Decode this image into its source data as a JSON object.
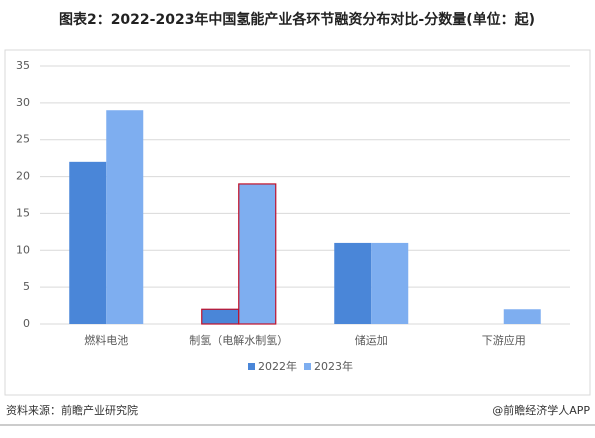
{
  "chart_data": {
    "type": "bar",
    "title": "图表2：2022-2023年中国氢能产业各环节融资分布对比-分数量(单位：起)",
    "categories": [
      "燃料电池",
      "制氢（电解水制氢）",
      "储运加",
      "下游应用"
    ],
    "series": [
      {
        "name": "2022年",
        "color": "#4a86d8",
        "values": [
          22,
          2,
          11,
          0
        ]
      },
      {
        "name": "2023年",
        "color": "#7eaef0",
        "values": [
          29,
          19,
          11,
          2
        ]
      }
    ],
    "ylim": [
      0,
      35
    ],
    "yticks": [
      0,
      5,
      10,
      15,
      20,
      25,
      30,
      35
    ],
    "grid": true,
    "legend": "bottom",
    "highlight": {
      "category": "制氢（电解水制氢）",
      "color": "#c0102a"
    },
    "source": "资料来源：前瞻产业研究院",
    "credit": "@前瞻经济学人APP"
  }
}
